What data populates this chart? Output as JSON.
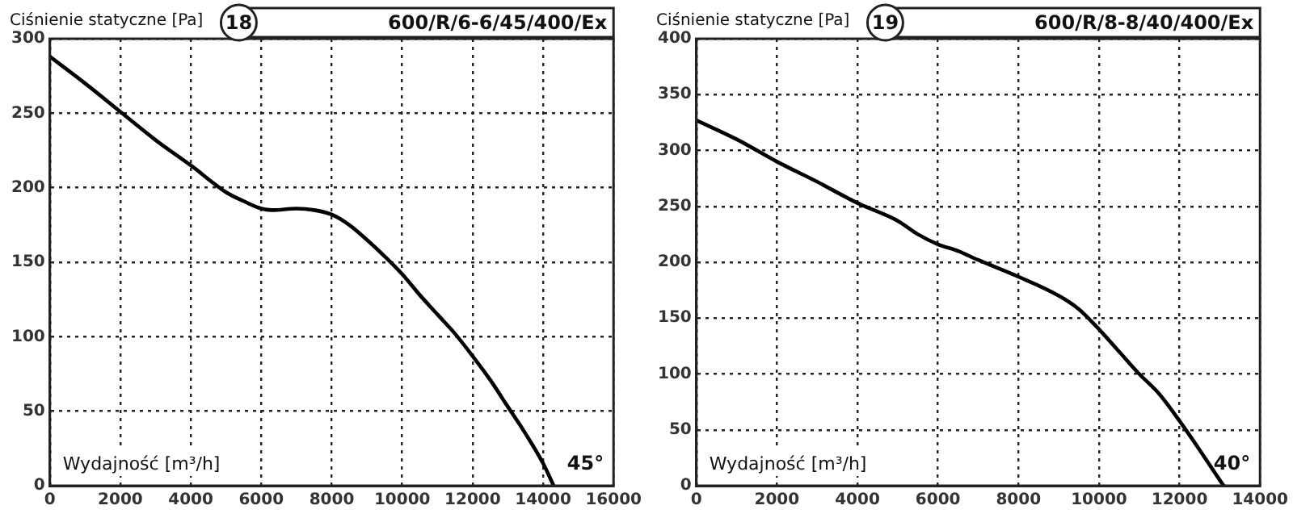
{
  "chart_data": [
    {
      "type": "line",
      "title": "600/R/6-6/45/400/Ex",
      "ylabel": "Ciśnienie statyczne [Pa]",
      "xlabel": "Wydajność [m³/h]",
      "annotations": [
        "18",
        "45°"
      ],
      "x": [
        0,
        1000,
        2000,
        3000,
        4000,
        5000,
        5500,
        6000,
        6300,
        7000,
        7500,
        8000,
        8500,
        9000,
        9500,
        10000,
        10500,
        11000,
        11500,
        12000,
        12500,
        13000,
        13500,
        14000,
        14300
      ],
      "series": [
        {
          "color": "#000000",
          "values": [
            288,
            270,
            251,
            232,
            215,
            197,
            191,
            186,
            185,
            186,
            185,
            182,
            175,
            165,
            154,
            142,
            128,
            115,
            102,
            87,
            71,
            53,
            35,
            15,
            0
          ]
        }
      ],
      "xlim": [
        0,
        16000
      ],
      "xticks": [
        0,
        2000,
        4000,
        6000,
        8000,
        10000,
        12000,
        14000,
        16000
      ],
      "ylim": [
        0,
        300
      ],
      "yticks": [
        0,
        50,
        100,
        150,
        200,
        250,
        300
      ],
      "grid": true,
      "legend": false,
      "marker": "none",
      "line_style": "solid"
    },
    {
      "type": "line",
      "title": "600/R/8-8/40/400/Ex",
      "ylabel": "Ciśnienie statyczne [Pa]",
      "xlabel": "Wydajność [m³/h]",
      "annotations": [
        "19",
        "40°"
      ],
      "x": [
        0,
        1000,
        2000,
        3000,
        4000,
        5000,
        5500,
        6000,
        6500,
        7000,
        8000,
        9000,
        9500,
        10000,
        10500,
        11000,
        11500,
        12000,
        12500,
        13000,
        13100
      ],
      "series": [
        {
          "color": "#000000",
          "values": [
            327,
            310,
            290,
            272,
            253,
            237,
            225,
            216,
            210,
            202,
            187,
            170,
            158,
            140,
            120,
            100,
            82,
            58,
            32,
            5,
            0
          ]
        }
      ],
      "xlim": [
        0,
        14000
      ],
      "xticks": [
        0,
        2000,
        4000,
        6000,
        8000,
        10000,
        12000,
        14000
      ],
      "ylim": [
        0,
        400
      ],
      "yticks": [
        0,
        50,
        100,
        150,
        200,
        250,
        300,
        350,
        400
      ],
      "grid": true,
      "legend": false,
      "marker": "none",
      "line_style": "solid"
    }
  ]
}
